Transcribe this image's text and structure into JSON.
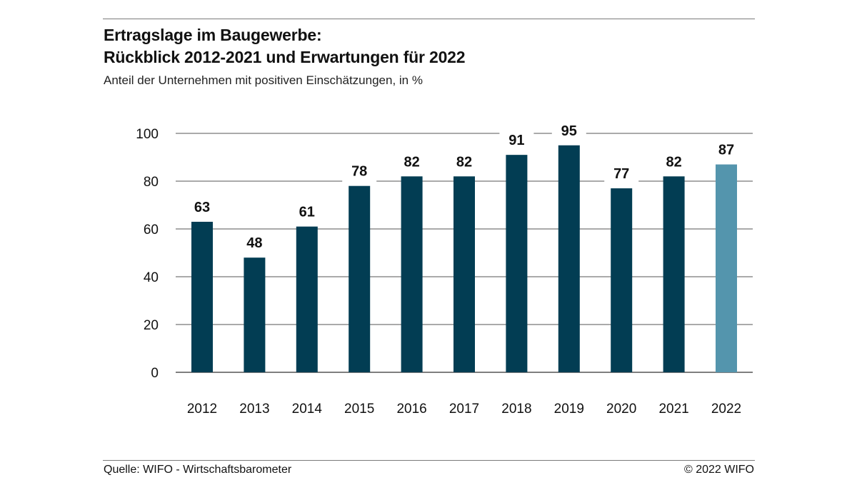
{
  "header": {
    "title_line1": "Ertragslage im Baugewerbe:",
    "title_line2": "Rückblick 2012-2021 und Erwartungen für 2022",
    "subtitle": "Anteil der Unternehmen mit positiven Einschätzungen, in %"
  },
  "footer": {
    "source": "Quelle: WIFO - Wirtschaftsbarometer",
    "copyright": "© 2022 WIFO"
  },
  "chart_data": {
    "type": "bar",
    "categories": [
      "2012",
      "2013",
      "2014",
      "2015",
      "2016",
      "2017",
      "2018",
      "2019",
      "2020",
      "2021",
      "2022"
    ],
    "values": [
      63,
      48,
      61,
      78,
      82,
      82,
      91,
      95,
      77,
      82,
      87
    ],
    "data_labels": [
      "63",
      "48",
      "61",
      "78",
      "82",
      "82",
      "91",
      "95",
      "77",
      "82",
      "87"
    ],
    "highlight_category": "2022",
    "ylim": [
      0,
      100
    ],
    "yticks": [
      0,
      20,
      40,
      60,
      80,
      100
    ],
    "grid": true,
    "colors": {
      "bar": "#023d53",
      "highlight": "#5495ad",
      "grid": "#555555"
    }
  }
}
